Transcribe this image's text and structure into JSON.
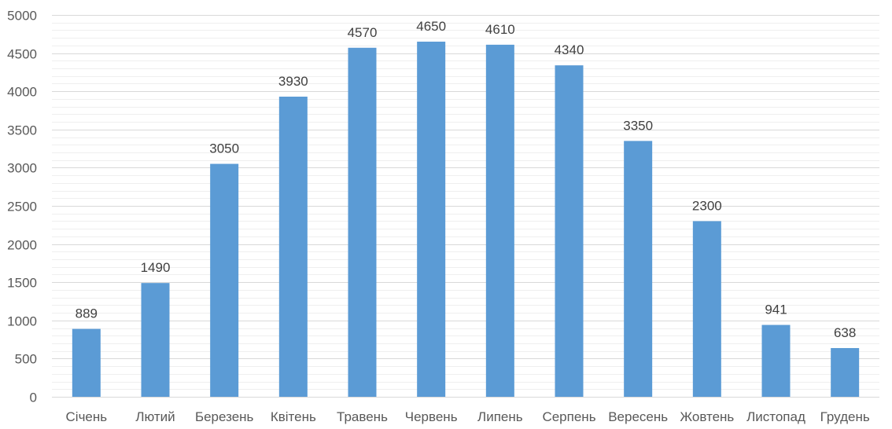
{
  "chart_data": {
    "type": "bar",
    "categories": [
      "Січень",
      "Лютий",
      "Березень",
      "Квітень",
      "Травень",
      "Червень",
      "Липень",
      "Серпень",
      "Вересень",
      "Жовтень",
      "Листопад",
      "Грудень"
    ],
    "values": [
      889,
      1490,
      3050,
      3930,
      4570,
      4650,
      4610,
      4340,
      3350,
      2300,
      941,
      638
    ],
    "data_labels": [
      "889",
      "1490",
      "3050",
      "3930",
      "4570",
      "4650",
      "4610",
      "4340",
      "3350",
      "2300",
      "941",
      "638"
    ],
    "yticks": [
      "0",
      "500",
      "1000",
      "1500",
      "2000",
      "2500",
      "3000",
      "3500",
      "4000",
      "4500",
      "5000"
    ],
    "ylim": [
      0,
      5000
    ],
    "ymajor_step": 500,
    "yminor_step": 100,
    "grid": true,
    "bar_color": "#5b9bd5",
    "title": "",
    "xlabel": "",
    "ylabel": ""
  }
}
